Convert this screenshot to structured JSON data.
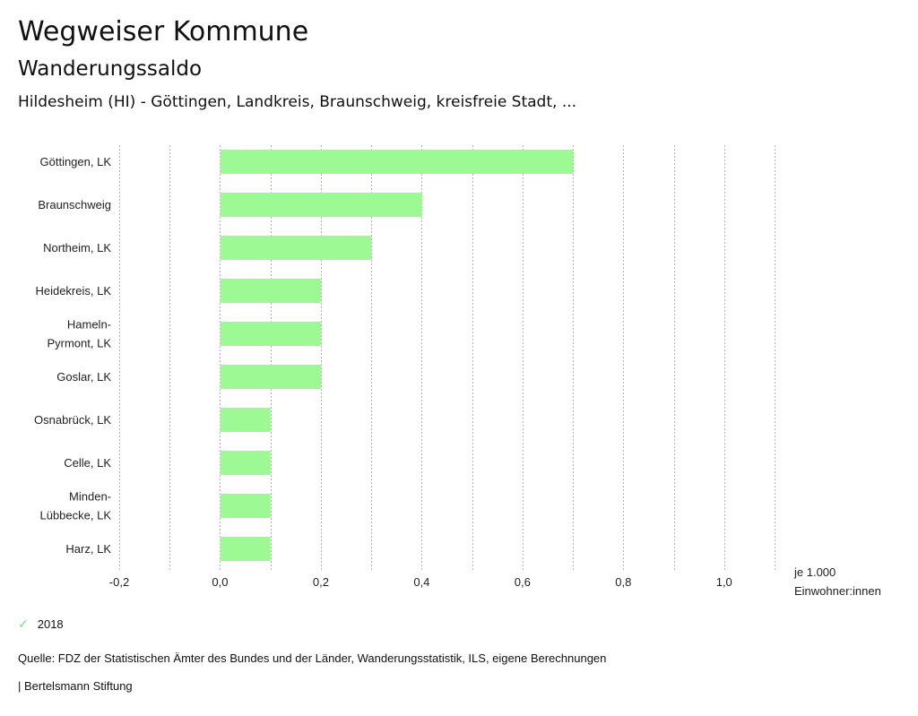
{
  "header": {
    "title": "Wegweiser Kommune",
    "subtitle": "Wanderungssaldo",
    "subsubtitle": "Hildesheim (HI) - Göttingen, Landkreis, Braunschweig, kreisfreie Stadt, ..."
  },
  "chart_data": {
    "type": "bar",
    "orientation": "horizontal",
    "title": "Wanderungssaldo",
    "categories": [
      [
        "Göttingen, LK"
      ],
      [
        "Braunschweig"
      ],
      [
        "Northeim, LK"
      ],
      [
        "Heidekreis, LK"
      ],
      [
        "Hameln-",
        "Pyrmont, LK"
      ],
      [
        "Goslar, LK"
      ],
      [
        "Osnabrück, LK"
      ],
      [
        "Celle, LK"
      ],
      [
        "Minden-",
        "Lübbecke, LK"
      ],
      [
        "Harz, LK"
      ]
    ],
    "series": [
      {
        "name": "2018",
        "color": "#9cf994",
        "values": [
          0.7,
          0.4,
          0.3,
          0.2,
          0.2,
          0.2,
          0.1,
          0.1,
          0.1,
          0.1
        ]
      }
    ],
    "xlim": [
      -0.2,
      1.1
    ],
    "xticks": [
      -0.2,
      0.0,
      0.2,
      0.4,
      0.6,
      0.8,
      1.0
    ],
    "xtick_labels": [
      "-0,2",
      "0,0",
      "0,2",
      "0,4",
      "0,6",
      "0,8",
      "1,0"
    ],
    "gridlines": [
      -0.2,
      -0.1,
      0.0,
      0.1,
      0.2,
      0.3,
      0.4,
      0.5,
      0.6,
      0.7,
      0.8,
      0.9,
      1.0,
      1.1
    ],
    "grid": true,
    "xlabel": [
      "je 1.000",
      "Einwohner:innen"
    ],
    "ylabel": "",
    "legend_position": "bottom-left"
  },
  "legend": {
    "label": "2018",
    "icon": "check-icon"
  },
  "footer": {
    "source": "Quelle: FDZ der Statistischen Ämter des Bundes und der Länder, Wanderungsstatistik, ILS, eigene Berechnungen",
    "credit": "| Bertelsmann Stiftung"
  }
}
